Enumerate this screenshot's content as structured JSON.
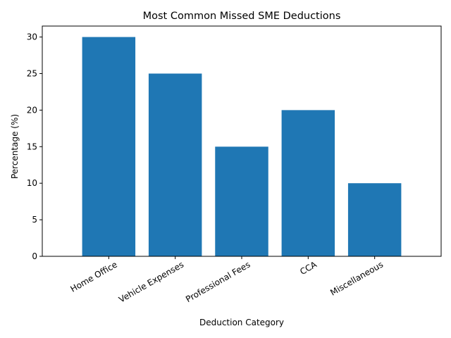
{
  "chart_data": {
    "type": "bar",
    "title": "Most Common Missed SME Deductions",
    "xlabel": "Deduction Category",
    "ylabel": "Percentage (%)",
    "categories": [
      "Home Office",
      "Vehicle Expenses",
      "Professional Fees",
      "CCA",
      "Miscellaneous"
    ],
    "values": [
      30,
      25,
      15,
      20,
      10
    ],
    "ylim": [
      0,
      31.5
    ],
    "yticks": [
      0,
      5,
      10,
      15,
      20,
      25,
      30
    ],
    "x_tick_rotation_deg": 30,
    "bar_color": "#1f77b4",
    "grid": false,
    "legend": "none"
  }
}
